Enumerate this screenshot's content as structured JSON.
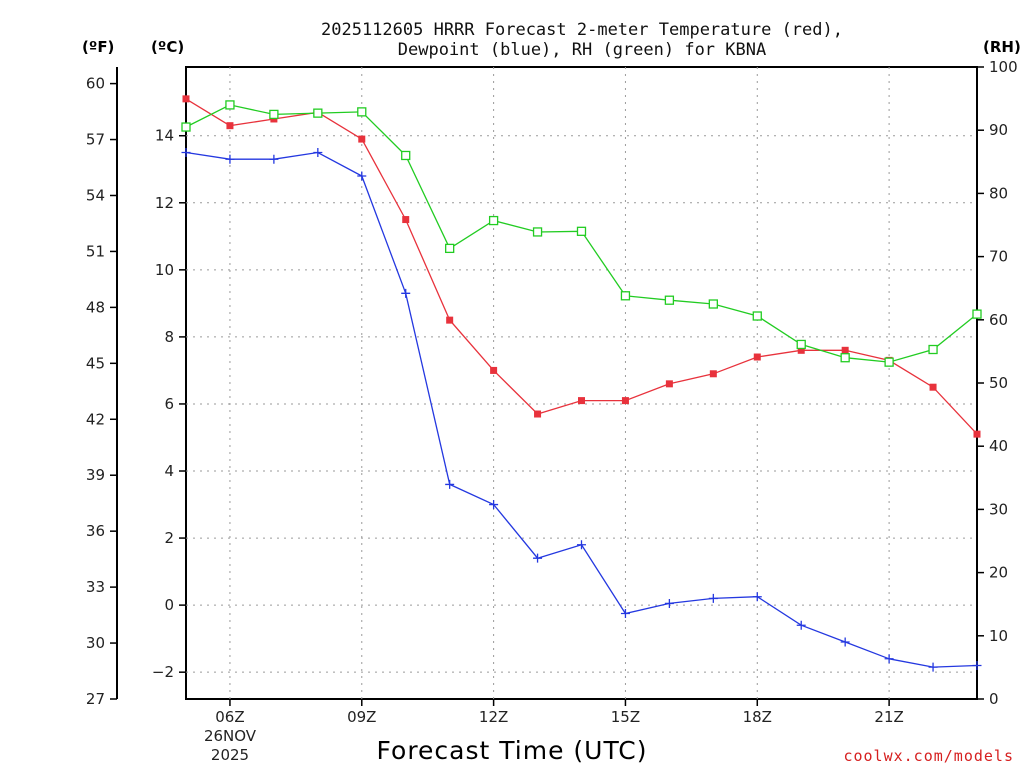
{
  "chart_data": {
    "type": "line",
    "title_lines": [
      "2025112605 HRRR Forecast 2-meter Temperature (red),",
      "Dewpoint (blue), RH (green) for KBNA"
    ],
    "xlabel": "Forecast Time (UTC)",
    "credit": "coolwx.com/models",
    "x_hours": [
      5,
      6,
      7,
      8,
      9,
      10,
      11,
      12,
      13,
      14,
      15,
      16,
      17,
      18,
      19,
      20,
      21,
      22,
      23
    ],
    "x_ticks": [
      {
        "hour": 6,
        "label": "06Z"
      },
      {
        "hour": 9,
        "label": "09Z"
      },
      {
        "hour": 12,
        "label": "12Z"
      },
      {
        "hour": 15,
        "label": "15Z"
      },
      {
        "hour": 18,
        "label": "18Z"
      },
      {
        "hour": 21,
        "label": "21Z"
      }
    ],
    "date_labels": [
      "26NOV",
      "2025"
    ],
    "xlim": [
      5,
      23
    ],
    "axes": {
      "celsius": {
        "unit_label": "(ºC)",
        "ylim": [
          -2.8,
          16.05
        ],
        "ticks": [
          -2,
          0,
          2,
          4,
          6,
          8,
          10,
          12,
          14
        ]
      },
      "fahrenheit": {
        "unit_label": "(ºF)",
        "ylim": [
          27,
          60.89
        ],
        "ticks": [
          27,
          30,
          33,
          36,
          39,
          42,
          45,
          48,
          51,
          54,
          57,
          60
        ]
      },
      "rh": {
        "unit_label": "(RH)",
        "ylim": [
          0,
          100
        ],
        "ticks": [
          0,
          10,
          20,
          30,
          40,
          50,
          60,
          70,
          80,
          90,
          100
        ]
      }
    },
    "series": [
      {
        "name": "Temperature",
        "axis": "celsius",
        "color": "#e8323c",
        "marker": "filled-square",
        "values": [
          15.1,
          14.3,
          14.5,
          14.7,
          13.9,
          11.5,
          8.5,
          7.0,
          5.7,
          6.1,
          6.1,
          6.6,
          6.9,
          7.4,
          7.6,
          7.6,
          7.3,
          6.5,
          5.1
        ]
      },
      {
        "name": "Dewpoint",
        "axis": "celsius",
        "color": "#2438e0",
        "marker": "plus",
        "values": [
          13.5,
          13.3,
          13.3,
          13.5,
          12.8,
          9.3,
          3.6,
          3.0,
          1.4,
          1.8,
          -0.25,
          0.05,
          0.2,
          0.25,
          -0.6,
          -1.1,
          -1.6,
          -1.85,
          -1.8
        ]
      },
      {
        "name": "RH",
        "axis": "rh",
        "color": "#22cc22",
        "marker": "open-square",
        "values": [
          90.5,
          94.0,
          92.5,
          92.7,
          92.9,
          86.0,
          71.3,
          75.7,
          73.9,
          74.0,
          63.8,
          63.1,
          62.5,
          60.6,
          56.1,
          54.0,
          53.3,
          55.3,
          60.9
        ]
      }
    ]
  }
}
